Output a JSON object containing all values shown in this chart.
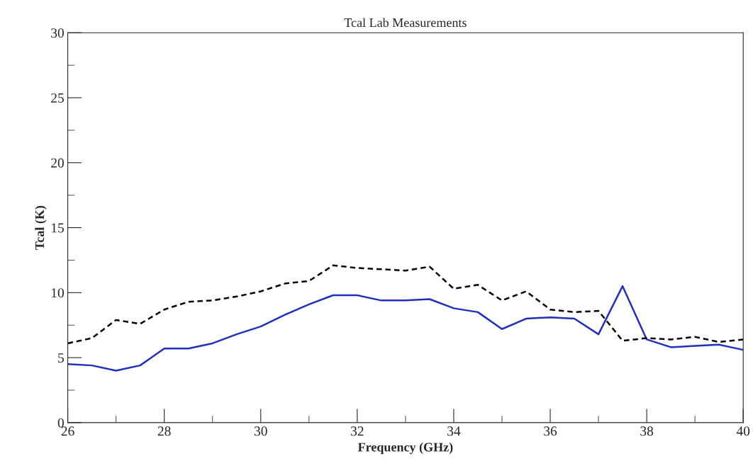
{
  "chart_data": {
    "type": "line",
    "title": "Tcal Lab Measurements",
    "xlabel": "Frequency (GHz)",
    "ylabel": "Tcal (K)",
    "x": [
      26,
      26.5,
      27,
      27.5,
      28,
      28.5,
      29,
      29.5,
      30,
      30.5,
      31,
      31.5,
      32,
      32.5,
      33,
      33.5,
      34,
      34.5,
      35,
      35.5,
      36,
      36.5,
      37,
      37.5,
      38,
      38.5,
      39,
      39.5,
      40
    ],
    "series": [
      {
        "color": "#1f2fc0",
        "line_style": "solid",
        "values": [
          4.5,
          4.4,
          4.0,
          4.4,
          5.7,
          5.7,
          6.1,
          6.8,
          7.4,
          8.3,
          9.1,
          9.8,
          9.8,
          9.4,
          9.4,
          9.5,
          8.8,
          8.5,
          7.2,
          8.0,
          8.1,
          8.0,
          6.8,
          10.5,
          6.4,
          5.8,
          5.9,
          6.0,
          5.6
        ]
      },
      {
        "color": "#000000",
        "line_style": "dashed",
        "values": [
          6.1,
          6.5,
          7.9,
          7.6,
          8.7,
          9.3,
          9.4,
          9.7,
          10.1,
          10.7,
          10.9,
          12.1,
          11.9,
          11.8,
          11.7,
          12.0,
          10.3,
          10.6,
          9.4,
          10.1,
          8.7,
          8.5,
          8.6,
          6.3,
          6.5,
          6.4,
          6.6,
          6.2,
          6.4
        ]
      }
    ],
    "xlim": [
      26,
      40
    ],
    "xticks": [
      26,
      28,
      30,
      32,
      34,
      36,
      38,
      40
    ],
    "ylim": [
      0,
      30
    ],
    "yticks": [
      0,
      5,
      10,
      15,
      20,
      25,
      30
    ],
    "grid": false,
    "legend": false,
    "marker": "none"
  }
}
